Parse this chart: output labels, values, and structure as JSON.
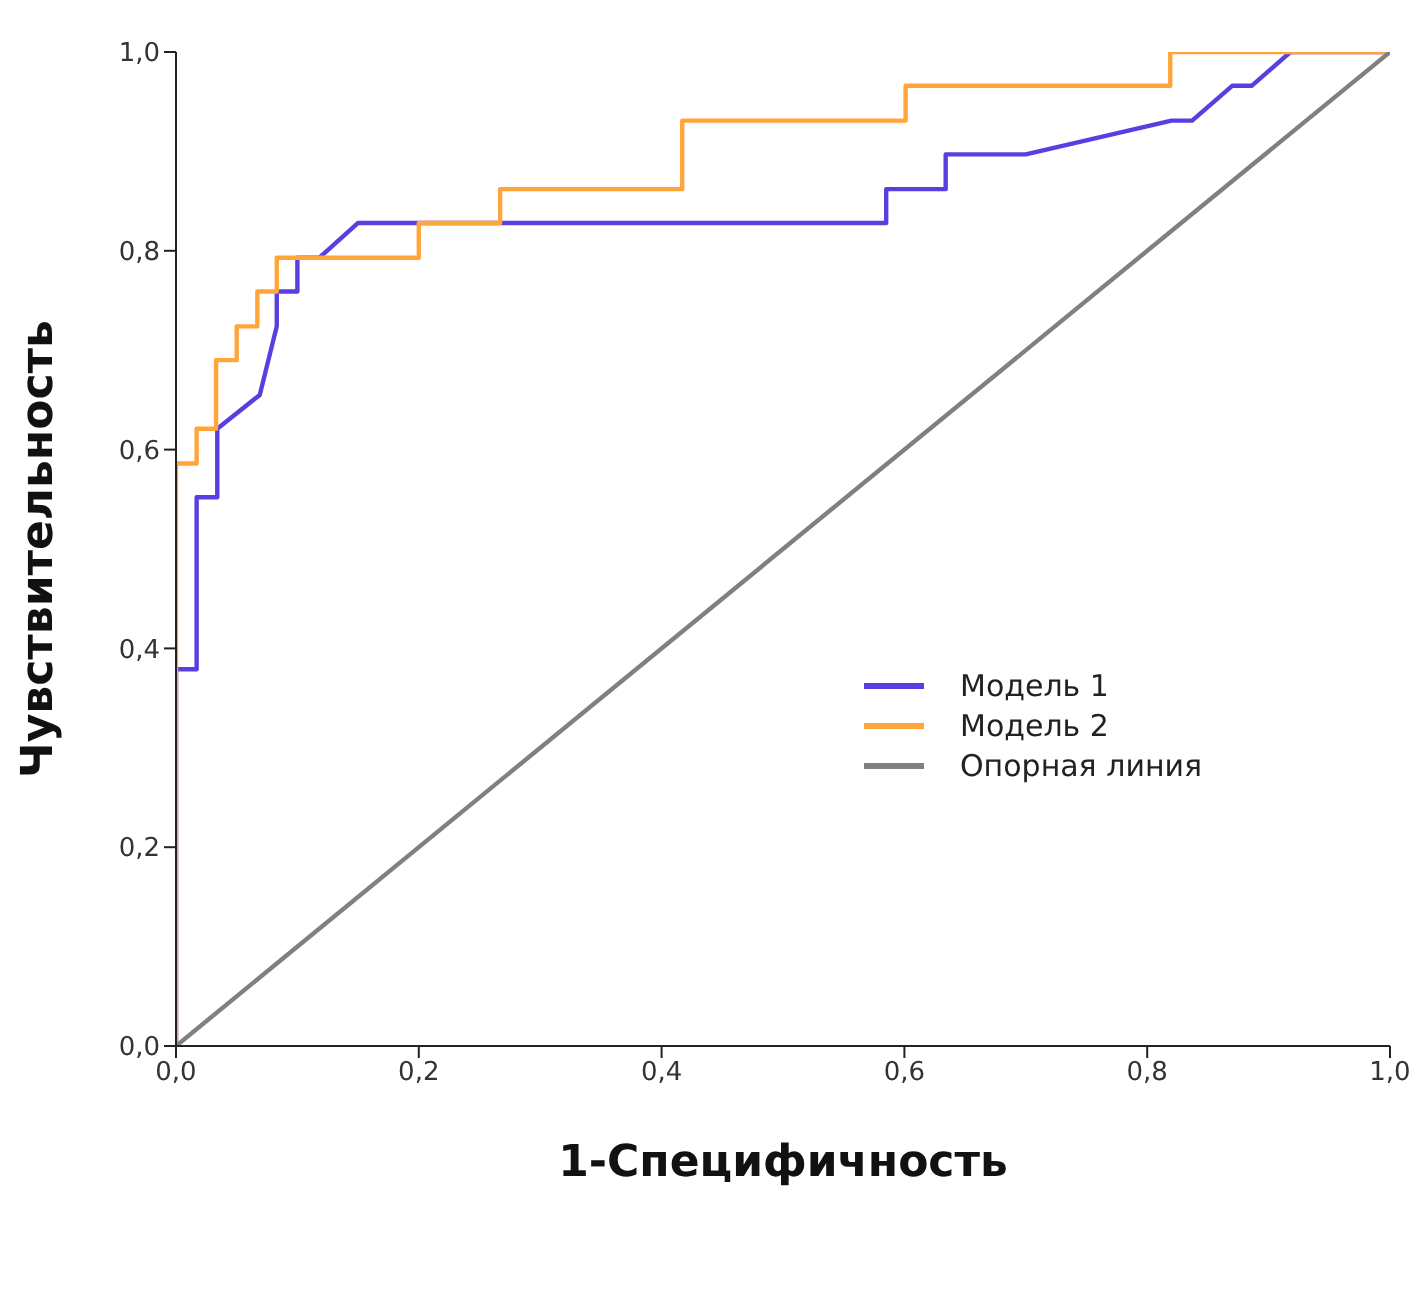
{
  "chart_data": {
    "type": "line",
    "xlabel": "1-Специфичность",
    "ylabel": "Чувствительность",
    "xlim": [
      0,
      1
    ],
    "ylim": [
      0,
      1
    ],
    "xticks": [
      {
        "value": 0,
        "label": "0,0"
      },
      {
        "value": 0.2,
        "label": "0,2"
      },
      {
        "value": 0.4,
        "label": "0,4"
      },
      {
        "value": 0.6,
        "label": "0,6"
      },
      {
        "value": 0.8,
        "label": "0,8"
      },
      {
        "value": 1,
        "label": "1,0"
      }
    ],
    "yticks": [
      {
        "value": 0,
        "label": "0,0"
      },
      {
        "value": 0.2,
        "label": "0,2"
      },
      {
        "value": 0.4,
        "label": "0,4"
      },
      {
        "value": 0.6,
        "label": "0,6"
      },
      {
        "value": 0.8,
        "label": "0,8"
      },
      {
        "value": 1,
        "label": "1,0"
      }
    ],
    "grid": false,
    "legend": "right",
    "marker": "none",
    "line_style": "solid",
    "series": [
      {
        "name": "Модель 1",
        "color": "#5a3fe0",
        "x": [
          0,
          0,
          0.017,
          0.017,
          0.034,
          0.034,
          0.069,
          0.083,
          0.083,
          0.1,
          0.1,
          0.118,
          0.15,
          0.585,
          0.585,
          0.634,
          0.634,
          0.7,
          0.82,
          0.837,
          0.87,
          0.886,
          0.918,
          1
        ],
        "values": [
          0,
          0.379,
          0.379,
          0.552,
          0.552,
          0.621,
          0.655,
          0.724,
          0.759,
          0.759,
          0.793,
          0.793,
          0.828,
          0.828,
          0.862,
          0.862,
          0.897,
          0.897,
          0.931,
          0.931,
          0.966,
          0.966,
          1,
          1
        ]
      },
      {
        "name": "Модель 2",
        "color": "#ffa53a",
        "x": [
          0,
          0,
          0.017,
          0.017,
          0.033,
          0.033,
          0.05,
          0.05,
          0.067,
          0.067,
          0.083,
          0.083,
          0.2,
          0.2,
          0.267,
          0.267,
          0.417,
          0.417,
          0.601,
          0.601,
          0.819,
          0.819,
          1
        ],
        "values": [
          0,
          0.586,
          0.586,
          0.621,
          0.621,
          0.69,
          0.69,
          0.724,
          0.724,
          0.759,
          0.759,
          0.793,
          0.793,
          0.828,
          0.828,
          0.862,
          0.862,
          0.931,
          0.931,
          0.966,
          0.966,
          1,
          1
        ]
      },
      {
        "name": "Опорная линия",
        "color": "#808080",
        "x": [
          0,
          1
        ],
        "values": [
          0,
          1
        ]
      }
    ]
  }
}
